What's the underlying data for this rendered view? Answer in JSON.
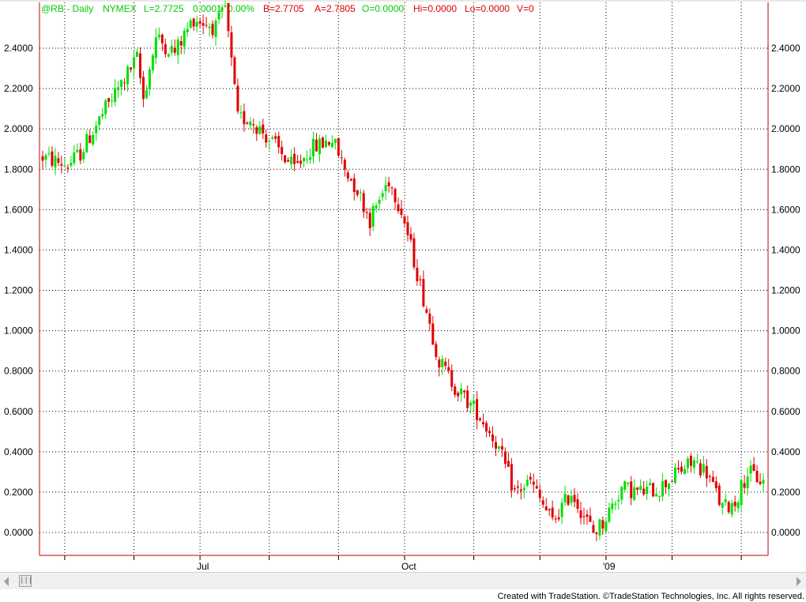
{
  "header": {
    "symbol": "@RB - Daily",
    "exchange": "NYMEX",
    "last": "L=2.7725",
    "change": "0.0001",
    "pct": "0.00%",
    "bid": "B=2.7705",
    "ask": "A=2.7805",
    "open": "O=0.0000",
    "high": "Hi=0.0000",
    "low": "Lo=0.0000",
    "volume": "V=0"
  },
  "footer": {
    "credit": "Created with TradeStation. ©TradeStation Technologies, Inc. All rights reserved."
  },
  "scrollbar": {
    "thumb_glyph": "|||"
  },
  "colors": {
    "up": "#00e000",
    "down": "#e00000",
    "frame": "#c00000",
    "header_green": "#00cc00",
    "header_red": "#dd0000",
    "grid": "#000000"
  },
  "chart_data": {
    "type": "ohlc",
    "title": "@RB - Daily NYMEX",
    "xlabel": "",
    "ylabel": "",
    "ylim": [
      -0.1,
      2.6
    ],
    "y_ticks": [
      "0.0000",
      "0.2000",
      "0.4000",
      "0.6000",
      "0.8000",
      "1.0000",
      "1.2000",
      "1.4000",
      "1.6000",
      "1.8000",
      "2.0000",
      "2.2000",
      "2.4000"
    ],
    "x_tick_labels": [
      {
        "label": "Jul",
        "bar_index": 50
      },
      {
        "label": "Oct",
        "bar_index": 115
      },
      {
        "label": "'09",
        "bar_index": 179
      }
    ],
    "grid": true,
    "close_path": [
      [
        0,
        1.86
      ],
      [
        8,
        1.82
      ],
      [
        12,
        1.88
      ],
      [
        20,
        2.1
      ],
      [
        30,
        2.35
      ],
      [
        32,
        2.15
      ],
      [
        36,
        2.45
      ],
      [
        42,
        2.38
      ],
      [
        48,
        2.55
      ],
      [
        55,
        2.5
      ],
      [
        58,
        2.6
      ],
      [
        62,
        2.05
      ],
      [
        66,
        2.05
      ],
      [
        72,
        1.95
      ],
      [
        80,
        1.8
      ],
      [
        85,
        1.9
      ],
      [
        92,
        1.95
      ],
      [
        96,
        1.8
      ],
      [
        100,
        1.7
      ],
      [
        104,
        1.55
      ],
      [
        110,
        1.75
      ],
      [
        114,
        1.6
      ],
      [
        118,
        1.35
      ],
      [
        122,
        1.1
      ],
      [
        126,
        0.85
      ],
      [
        132,
        0.7
      ],
      [
        138,
        0.6
      ],
      [
        144,
        0.45
      ],
      [
        150,
        0.2
      ],
      [
        155,
        0.25
      ],
      [
        162,
        0.05
      ],
      [
        168,
        0.2
      ],
      [
        175,
        0.0
      ],
      [
        178,
        0.05
      ],
      [
        184,
        0.22
      ],
      [
        190,
        0.2
      ],
      [
        196,
        0.22
      ],
      [
        202,
        0.3
      ],
      [
        207,
        0.35
      ],
      [
        211,
        0.3
      ],
      [
        216,
        0.12
      ],
      [
        220,
        0.15
      ],
      [
        224,
        0.3
      ],
      [
        229,
        0.25
      ]
    ],
    "bar_count": 230
  }
}
